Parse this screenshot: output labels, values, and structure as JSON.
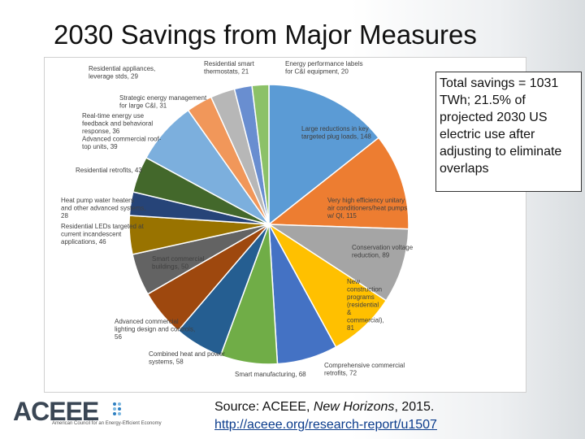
{
  "slide": {
    "title": "2030 Savings from Major Measures"
  },
  "callout": {
    "text": "Total savings = 1031 TWh; 21.5% of projected 2030 US electric use after adjusting to eliminate overlaps"
  },
  "source": {
    "prefix": "Source: ACEEE, ",
    "publication": "New Horizons",
    "suffix": ", 2015.",
    "url": "http://aceee.org/research-report/u1507"
  },
  "logo": {
    "wordmark": "ACEEE",
    "tagline": "American Council for an Energy-Efficient Economy"
  },
  "chart_data": {
    "type": "pie",
    "title": "",
    "slices": [
      {
        "label": [
          "Large reductions in key",
          "targeted plug loads, 148"
        ],
        "value": 148,
        "color": "#5b9bd5"
      },
      {
        "label": [
          "Very high efficiency unitary",
          "air conditioners/heat pumps",
          "w/ QI, 115"
        ],
        "value": 115,
        "color": "#ed7d31"
      },
      {
        "label": [
          "Conservation voltage",
          "reduction, 89"
        ],
        "value": 89,
        "color": "#a5a5a5"
      },
      {
        "label": [
          "New",
          "construction",
          "programs",
          "(residential",
          "&",
          "commercial),",
          "81"
        ],
        "value": 81,
        "color": "#ffc000"
      },
      {
        "label": [
          "Comprehensive commercial",
          "retrofits, 72"
        ],
        "value": 72,
        "color": "#4472c4"
      },
      {
        "label": [
          "Smart manufacturing, 68"
        ],
        "value": 68,
        "color": "#70ad47"
      },
      {
        "label": [
          "Combined heat and power",
          "systems, 58"
        ],
        "value": 58,
        "color": "#255e91"
      },
      {
        "label": [
          "Advanced commercial",
          "lighting design and controls,",
          "56"
        ],
        "value": 56,
        "color": "#9e480e"
      },
      {
        "label": [
          "Smart commercial",
          "buildings, 50"
        ],
        "value": 50,
        "color": "#636363"
      },
      {
        "label": [
          "Residential LEDs targeted at",
          "current incandescent",
          "applications, 46"
        ],
        "value": 46,
        "color": "#997300"
      },
      {
        "label": [
          "Heat pump water heaters",
          "and other advanced systems,",
          "28"
        ],
        "value": 28,
        "color": "#264478"
      },
      {
        "label": [
          "Residential retrofits, 43"
        ],
        "value": 43,
        "color": "#43682b"
      },
      {
        "label": [
          "Real-time energy use",
          "feedback and behavioral",
          "response, 36",
          "Advanced commercial roof-",
          "top units, 39"
        ],
        "value": 75,
        "color": "#7cafdd"
      },
      {
        "label": [
          "Strategic energy management",
          "for large C&I, 31"
        ],
        "value": 31,
        "color": "#f1975a"
      },
      {
        "label": [
          "Residential appliances,",
          "leverage stds, 29"
        ],
        "value": 29,
        "color": "#b7b7b7"
      },
      {
        "label": [
          "Residential smart",
          "thermostats, 21"
        ],
        "value": 21,
        "color": "#698ed0"
      },
      {
        "label": [
          "Energy performance labels",
          "for C&I equipment, 20"
        ],
        "value": 20,
        "color": "#8cc168"
      }
    ]
  }
}
